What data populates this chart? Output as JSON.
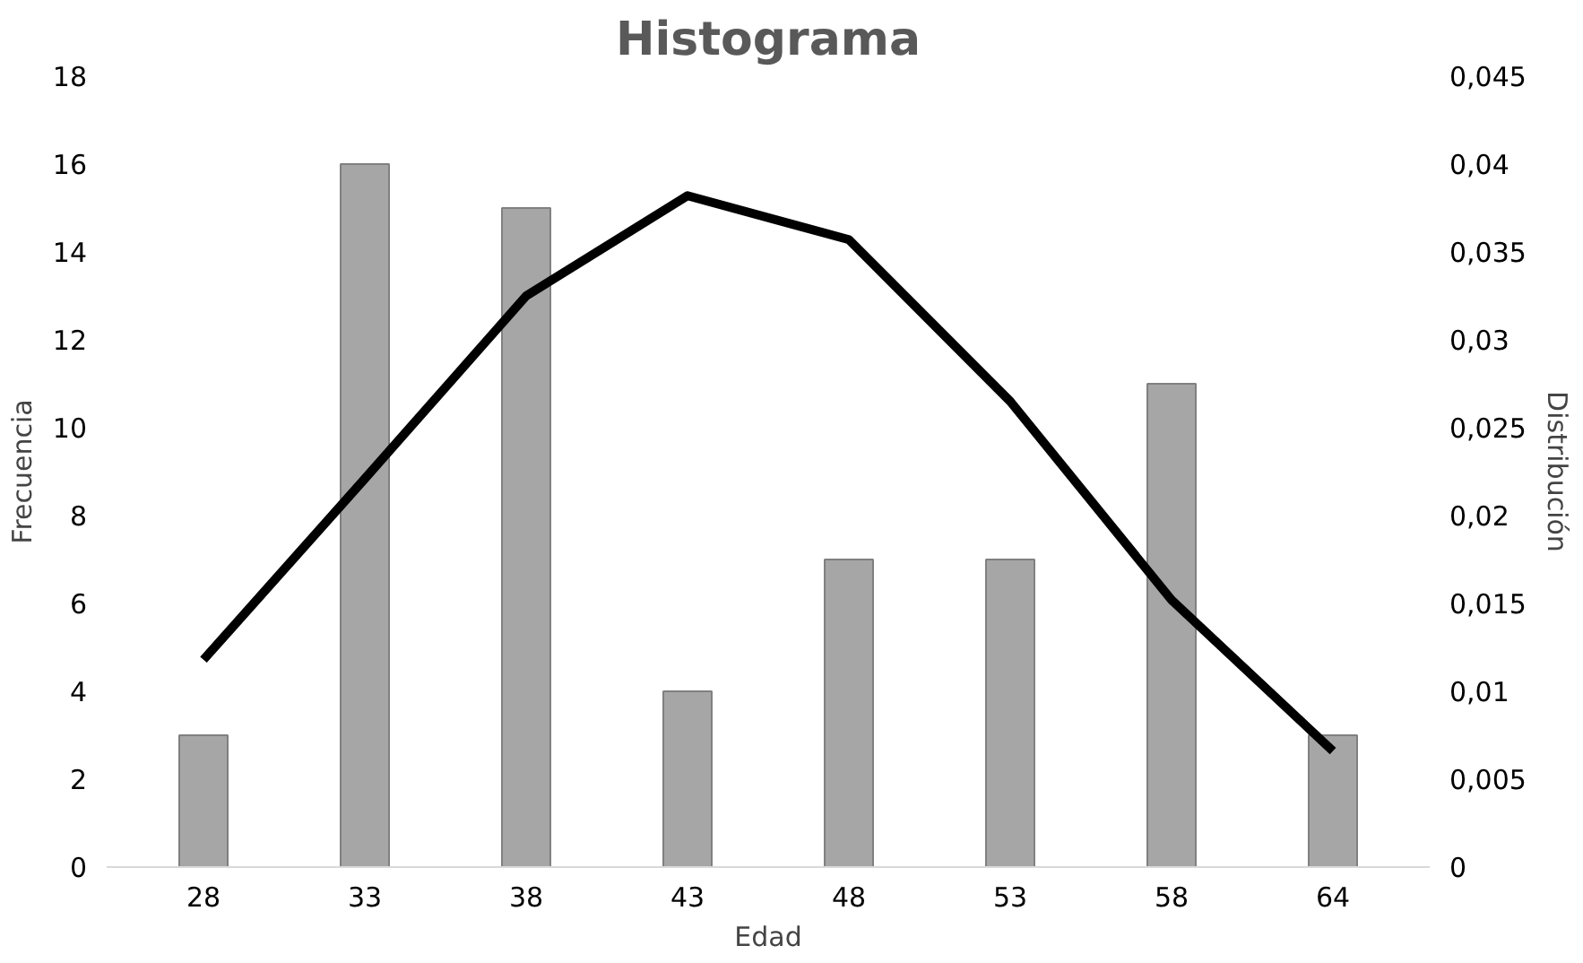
{
  "chart_data": {
    "type": "bar",
    "title": "Histograma",
    "xlabel": "Edad",
    "ylabel": "Frecuencia",
    "y2label": "Distribución",
    "categories": [
      "28",
      "33",
      "38",
      "43",
      "48",
      "53",
      "58",
      "64"
    ],
    "series": [
      {
        "color": "#a6a6a6",
        "values": [
          3,
          16,
          15,
          4,
          7,
          7,
          11,
          3
        ]
      },
      {
        "type": "line",
        "axis": "y2",
        "color": "#000000",
        "values": [
          0.0118,
          0.0221,
          0.0325,
          0.0382,
          0.0357,
          0.0265,
          0.0152,
          0.0066
        ]
      }
    ],
    "ylim": [
      0,
      18
    ],
    "yticks": [
      0,
      2,
      4,
      6,
      8,
      10,
      12,
      14,
      16,
      18
    ],
    "y2lim": [
      0,
      0.045
    ],
    "y2ticks": [
      0,
      {
        "value": 0.005,
        "label": "0,005"
      },
      {
        "value": 0.01,
        "label": "0,01"
      },
      {
        "value": 0.015,
        "label": "0,015"
      },
      {
        "value": 0.02,
        "label": "0,02"
      },
      {
        "value": 0.025,
        "label": "0,025"
      },
      {
        "value": 0.03,
        "label": "0,03"
      },
      {
        "value": 0.035,
        "label": "0,035"
      },
      {
        "value": 0.04,
        "label": "0,04"
      },
      {
        "value": 0.045,
        "label": "0,045"
      }
    ],
    "line_style": "solid"
  }
}
